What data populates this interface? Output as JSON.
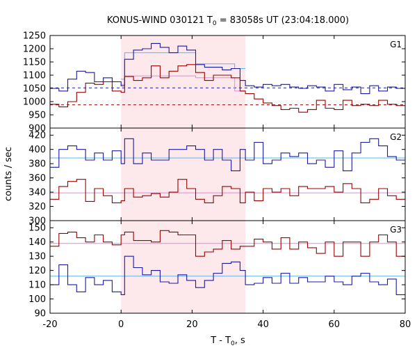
{
  "chart_data": {
    "type": "line",
    "title": "KONUS-WIND 030121 T",
    "title_sub": "0",
    "title_tail": " = 83058s UT (23:04:18.000)",
    "xlabel": "T - T",
    "xlabel_sub": "0",
    "xlabel_tail": ", s",
    "ylabel": "counts / sec",
    "xlim": [
      -20,
      80
    ],
    "xticks": [
      -20,
      0,
      20,
      40,
      60,
      80
    ],
    "highlight_interval": [
      0,
      35
    ],
    "highlight_color": "#fde8ec",
    "panels": [
      {
        "name": "G1",
        "ylim": [
          900,
          1250
        ],
        "yticks": [
          900,
          950,
          1000,
          1050,
          1100,
          1150,
          1200,
          1250
        ],
        "series": [
          {
            "color": "#1a1aa0",
            "x": [
              -20,
              -17.5,
              -15,
              -12.5,
              -10,
              -7.5,
              -5,
              -2.5,
              0,
              1,
              3.5,
              6,
              8.5,
              11,
              13.5,
              16,
              18.5,
              21,
              23.5,
              26,
              28.5,
              31,
              33.5,
              35,
              37.5,
              40,
              42.5,
              45,
              47.5,
              50,
              52.5,
              55,
              57.5,
              60,
              62.5,
              65,
              67.5,
              70,
              72.5,
              75,
              77.5,
              80
            ],
            "y": [
              1050,
              1040,
              1085,
              1115,
              1110,
              1075,
              1090,
              1075,
              1060,
              1160,
              1195,
              1200,
              1220,
              1205,
              1185,
              1210,
              1195,
              1140,
              1130,
              1130,
              1120,
              1125,
              1080,
              1060,
              1055,
              1065,
              1060,
              1065,
              1055,
              1050,
              1060,
              1055,
              1040,
              1065,
              1045,
              1055,
              1030,
              1060,
              1040,
              1055,
              1050,
              1050
            ]
          },
          {
            "color": "#990000",
            "x": [
              -20,
              -17.5,
              -15,
              -12.5,
              -10,
              -7.5,
              -5,
              -2.5,
              0,
              1,
              3.5,
              6,
              8.5,
              11,
              13.5,
              16,
              18.5,
              21,
              23.5,
              26,
              28.5,
              31,
              33.5,
              35,
              37.5,
              40,
              42.5,
              45,
              47.5,
              50,
              52.5,
              55,
              57.5,
              60,
              62.5,
              65,
              67.5,
              70,
              72.5,
              75,
              77.5,
              80
            ],
            "y": [
              990,
              980,
              1000,
              1035,
              1070,
              1065,
              1075,
              1040,
              1035,
              1095,
              1080,
              1090,
              1135,
              1090,
              1115,
              1135,
              1140,
              1110,
              1080,
              1100,
              1100,
              1090,
              1040,
              1030,
              1010,
              995,
              985,
              970,
              975,
              960,
              970,
              1005,
              975,
              970,
              1005,
              985,
              990,
              985,
              1005,
              990,
              985,
              1000
            ]
          }
        ],
        "fits": [
          {
            "color": "#1a1aa0",
            "style": "dashed",
            "y": 1052,
            "x_range": [
              -20,
              80
            ]
          },
          {
            "color": "#990000",
            "style": "dashed",
            "y": 988,
            "x_range": [
              -20,
              80
            ]
          },
          {
            "color": "#5ab4e8",
            "style": "solid",
            "x": [
              0,
              1,
              21,
              32,
              35
            ],
            "y": [
              1085,
              1185,
              1143,
              1125,
              1060
            ]
          },
          {
            "color": "#e08ad8",
            "style": "solid",
            "x": [
              0,
              1,
              21,
              32,
              35
            ],
            "y": [
              1065,
              1097,
              1090,
              1040,
              1022
            ]
          }
        ]
      },
      {
        "name": "G2",
        "ylim": [
          300,
          430
        ],
        "yticks": [
          300,
          320,
          340,
          360,
          380,
          400,
          420
        ],
        "series": [
          {
            "color": "#1a1aa0",
            "x": [
              -20,
              -17.5,
              -15,
              -12.5,
              -10,
              -7.5,
              -5,
              -2.5,
              0,
              1,
              3.5,
              6,
              8.5,
              11,
              13.5,
              16,
              18.5,
              21,
              23.5,
              26,
              28.5,
              31,
              33.5,
              35,
              37.5,
              40,
              42.5,
              45,
              47.5,
              50,
              52.5,
              55,
              57.5,
              60,
              62.5,
              65,
              67.5,
              70,
              72.5,
              75,
              77.5,
              80
            ],
            "y": [
              375,
              400,
              405,
              400,
              385,
              395,
              385,
              398,
              380,
              415,
              380,
              395,
              385,
              385,
              400,
              400,
              405,
              400,
              385,
              400,
              385,
              370,
              400,
              385,
              410,
              380,
              385,
              395,
              390,
              395,
              380,
              385,
              375,
              398,
              370,
              395,
              410,
              415,
              405,
              390,
              385,
              385
            ]
          },
          {
            "color": "#990000",
            "x": [
              -20,
              -17.5,
              -15,
              -12.5,
              -10,
              -7.5,
              -5,
              -2.5,
              0,
              1,
              3.5,
              6,
              8.5,
              11,
              13.5,
              16,
              18.5,
              21,
              23.5,
              26,
              28.5,
              31,
              33.5,
              35,
              37.5,
              40,
              42.5,
              45,
              47.5,
              50,
              52.5,
              55,
              57.5,
              60,
              62.5,
              65,
              67.5,
              70,
              72.5,
              75,
              77.5,
              80
            ],
            "y": [
              330,
              348,
              355,
              358,
              327,
              345,
              335,
              325,
              328,
              345,
              333,
              335,
              338,
              333,
              340,
              358,
              345,
              330,
              325,
              335,
              348,
              345,
              325,
              340,
              328,
              345,
              340,
              345,
              335,
              348,
              345,
              345,
              348,
              340,
              352,
              345,
              325,
              330,
              345,
              335,
              330,
              348
            ]
          }
        ],
        "fits": [
          {
            "color": "#5ab4e8",
            "style": "solid",
            "y": 388,
            "x_range": [
              -20,
              80
            ]
          },
          {
            "color": "#e08ad8",
            "style": "solid",
            "y": 339,
            "x_range": [
              -20,
              80
            ]
          }
        ]
      },
      {
        "name": "G3",
        "ylim": [
          90,
          155
        ],
        "yticks": [
          90,
          100,
          110,
          120,
          130,
          140,
          150
        ],
        "series": [
          {
            "color": "#990000",
            "x": [
              -20,
              -17.5,
              -15,
              -12.5,
              -10,
              -7.5,
              -5,
              -2.5,
              0,
              1,
              3.5,
              6,
              8.5,
              11,
              13.5,
              16,
              18.5,
              21,
              23.5,
              26,
              28.5,
              31,
              33.5,
              35,
              37.5,
              40,
              42.5,
              45,
              47.5,
              50,
              52.5,
              55,
              57.5,
              60,
              62.5,
              65,
              67.5,
              70,
              72.5,
              75,
              77.5,
              80
            ],
            "y": [
              137,
              146,
              147,
              143,
              140,
              145,
              140,
              138,
              145,
              147,
              141,
              141,
              140,
              148,
              147,
              145,
              145,
              130,
              133,
              135,
              141,
              135,
              137,
              137,
              142,
              140,
              135,
              143,
              135,
              140,
              136,
              132,
              140,
              130,
              140,
              140,
              130,
              140,
              145,
              140,
              130,
              150
            ]
          },
          {
            "color": "#1a1aa0",
            "x": [
              -20,
              -17.5,
              -15,
              -12.5,
              -10,
              -7.5,
              -5,
              -2.5,
              0,
              1,
              3.5,
              6,
              8.5,
              11,
              13.5,
              16,
              18.5,
              21,
              23.5,
              26,
              28.5,
              31,
              33.5,
              35,
              37.5,
              40,
              42.5,
              45,
              47.5,
              50,
              52.5,
              55,
              57.5,
              60,
              62.5,
              65,
              67.5,
              70,
              72.5,
              75,
              77.5,
              80
            ],
            "y": [
              110,
              124,
              110,
              105,
              115,
              110,
              113,
              105,
              103,
              130,
              122,
              117,
              120,
              112,
              111,
              117,
              113,
              108,
              113,
              118,
              125,
              126,
              120,
              110,
              111,
              115,
              111,
              118,
              111,
              115,
              112,
              112,
              116,
              112,
              110,
              116,
              118,
              112,
              110,
              114,
              103,
              117
            ]
          }
        ],
        "fits": [
          {
            "color": "#e08ad8",
            "style": "solid",
            "y": 139,
            "x_range": [
              -20,
              80
            ]
          },
          {
            "color": "#5ab4e8",
            "style": "solid",
            "y": 116,
            "x_range": [
              -20,
              80
            ]
          }
        ]
      }
    ]
  }
}
